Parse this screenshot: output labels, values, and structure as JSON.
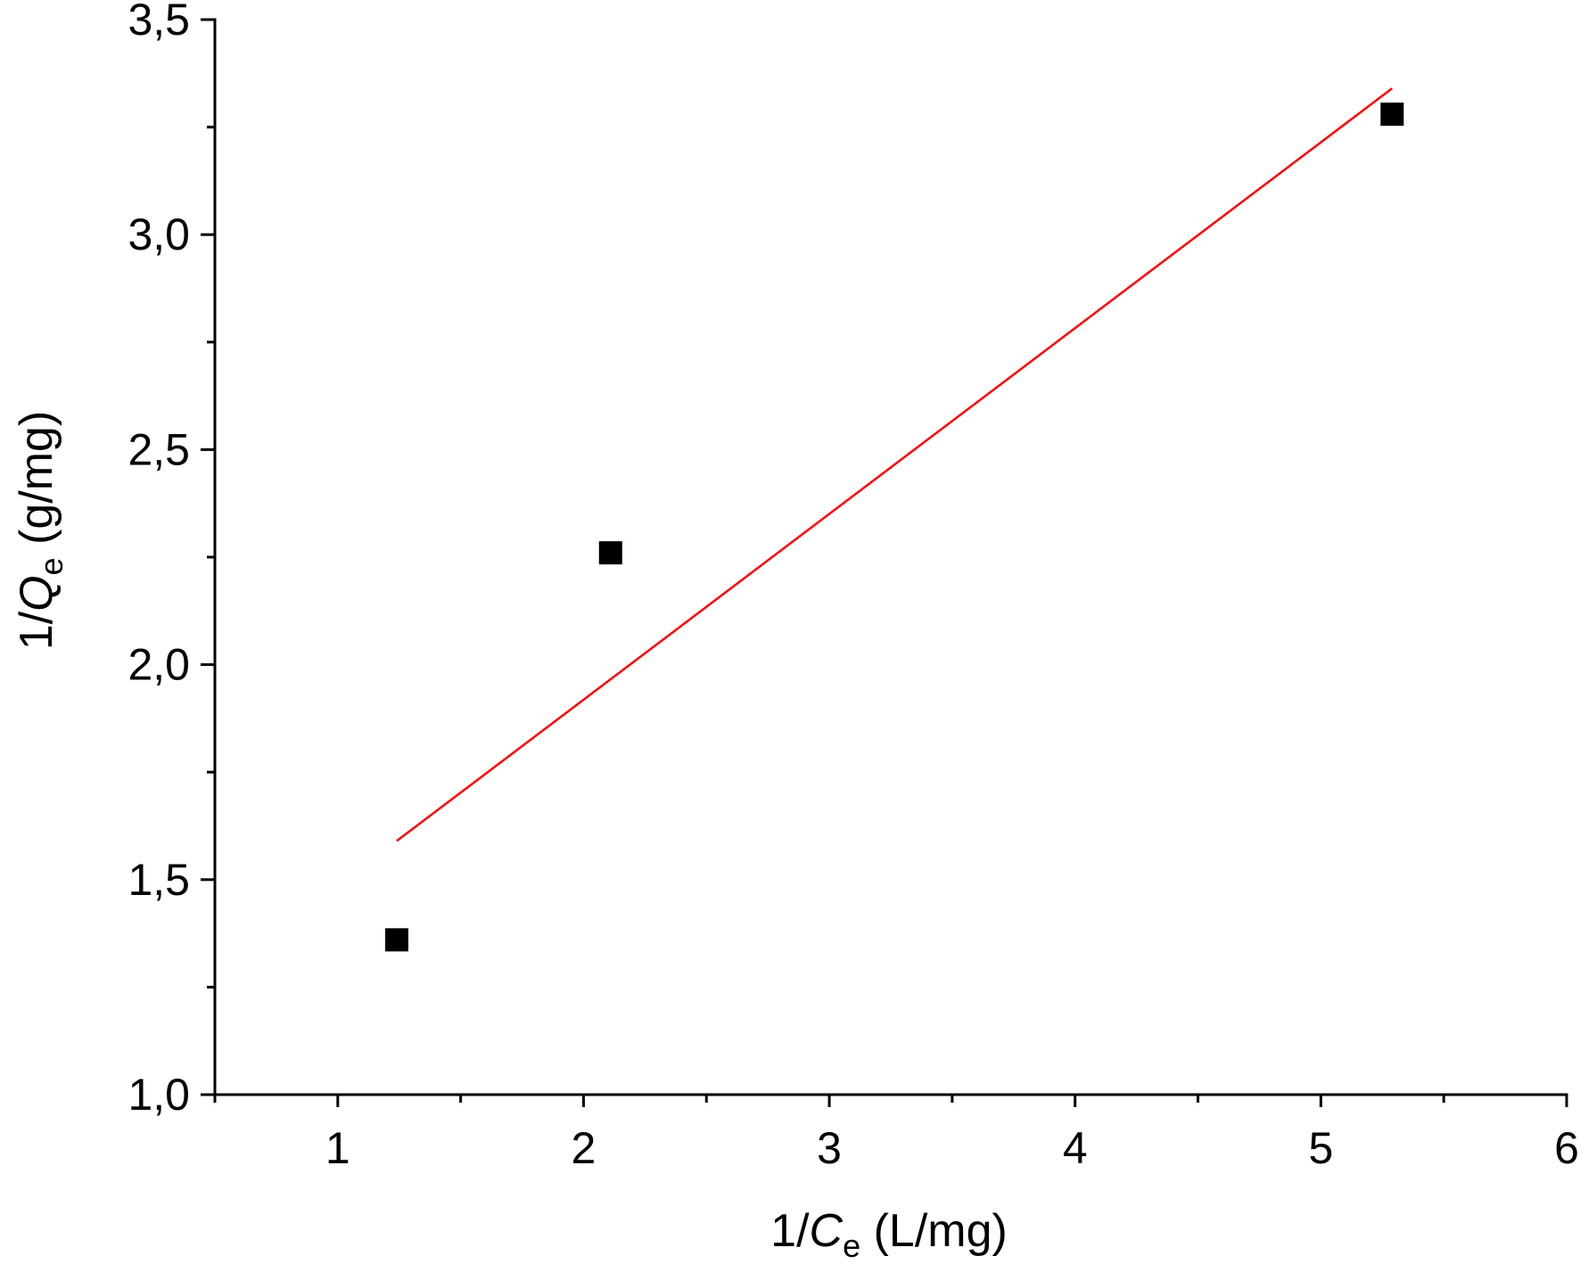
{
  "chart_data": {
    "type": "scatter",
    "xlabel": {
      "prefix": "1/",
      "var": "C",
      "sub": "e",
      "unit": " (L/mg)"
    },
    "ylabel": {
      "prefix": "1/",
      "var": "Q",
      "sub": "e",
      "unit": " (g/mg)"
    },
    "xlim": [
      0.5,
      6
    ],
    "ylim": [
      1.0,
      3.5
    ],
    "x_ticks": [
      {
        "value": 1,
        "label": "1"
      },
      {
        "value": 2,
        "label": "2"
      },
      {
        "value": 3,
        "label": "3"
      },
      {
        "value": 4,
        "label": "4"
      },
      {
        "value": 5,
        "label": "5"
      },
      {
        "value": 6,
        "label": "6"
      }
    ],
    "x_minor_ticks": [
      0.5,
      1.5,
      2.5,
      3.5,
      4.5,
      5.5
    ],
    "y_ticks": [
      {
        "value": 1.0,
        "label": "1,0"
      },
      {
        "value": 1.5,
        "label": "1,5"
      },
      {
        "value": 2.0,
        "label": "2,0"
      },
      {
        "value": 2.5,
        "label": "2,5"
      },
      {
        "value": 3.0,
        "label": "3,0"
      },
      {
        "value": 3.5,
        "label": "3,5"
      }
    ],
    "y_minor_ticks": [
      1.25,
      1.75,
      2.25,
      2.75,
      3.25
    ],
    "series": [
      {
        "kind": "scatter",
        "marker": "square",
        "color": "#000000",
        "points": [
          {
            "x": 1.24,
            "y": 1.36
          },
          {
            "x": 2.11,
            "y": 2.26
          },
          {
            "x": 5.29,
            "y": 3.28
          }
        ]
      },
      {
        "kind": "line",
        "color": "#ff0000",
        "points": [
          {
            "x": 1.24,
            "y": 1.59
          },
          {
            "x": 5.29,
            "y": 3.34
          }
        ]
      }
    ],
    "grid": false,
    "legend": "none"
  }
}
